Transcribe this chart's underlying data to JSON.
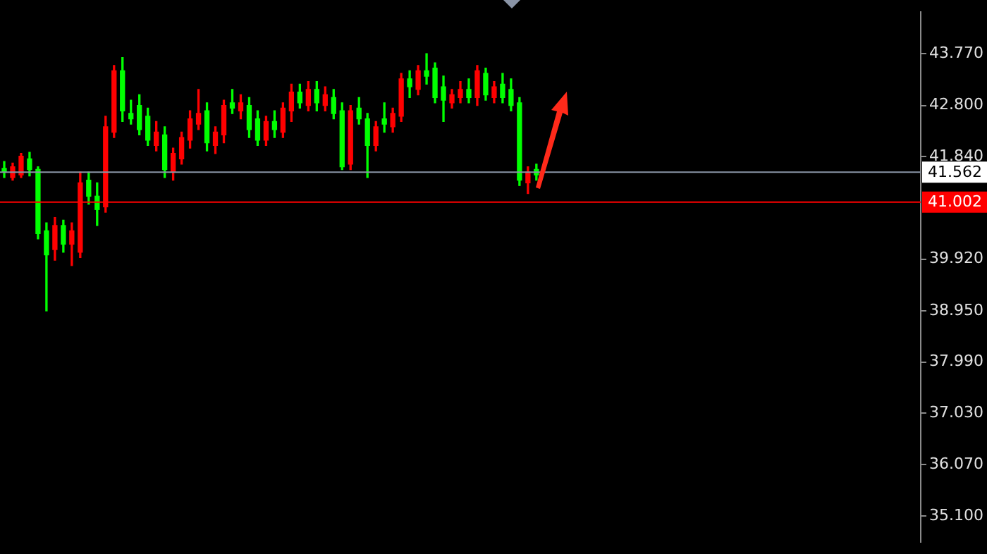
{
  "chart_data": {
    "type": "candlestick",
    "categories": [
      null,
      null,
      null,
      null,
      null,
      null,
      null,
      null,
      null,
      null,
      null,
      null,
      null,
      null,
      null,
      null,
      null,
      null,
      null,
      null,
      null,
      null,
      null,
      null,
      null,
      null,
      null,
      null,
      null,
      null,
      null,
      null,
      null,
      null,
      null,
      null,
      null,
      null,
      null,
      null,
      null,
      null,
      null,
      null,
      null,
      null,
      null,
      null,
      null,
      null,
      null,
      null,
      null,
      null,
      null,
      null,
      null,
      null,
      null,
      null,
      null,
      null,
      null,
      null,
      null,
      null,
      null,
      null,
      null,
      null,
      null,
      null,
      null,
      null,
      null,
      null,
      null,
      null,
      null,
      null,
      null,
      null,
      null,
      null,
      null,
      null,
      null,
      null,
      null,
      null,
      null,
      null,
      null,
      null,
      null,
      null,
      null,
      null,
      null,
      null,
      null,
      null,
      null,
      null,
      null,
      null,
      null,
      null,
      null
    ],
    "ohlc": [
      [
        41.62,
        41.75,
        41.45,
        41.55
      ],
      [
        41.45,
        41.72,
        41.4,
        41.65
      ],
      [
        41.5,
        41.9,
        41.45,
        41.85
      ],
      [
        41.8,
        41.92,
        41.48,
        41.6
      ],
      [
        41.6,
        41.65,
        40.3,
        40.4
      ],
      [
        40.45,
        40.6,
        38.95,
        40.0
      ],
      [
        40.1,
        40.7,
        39.9,
        40.55
      ],
      [
        40.55,
        40.65,
        40.05,
        40.2
      ],
      [
        40.2,
        40.6,
        39.8,
        40.45
      ],
      [
        40.05,
        41.55,
        39.95,
        41.35
      ],
      [
        41.4,
        41.55,
        40.95,
        41.1
      ],
      [
        41.1,
        41.35,
        40.55,
        40.85
      ],
      [
        40.9,
        42.6,
        40.8,
        42.4
      ],
      [
        42.3,
        43.55,
        42.2,
        43.45
      ],
      [
        43.45,
        43.7,
        42.5,
        42.7
      ],
      [
        42.65,
        42.9,
        42.45,
        42.55
      ],
      [
        42.8,
        43.0,
        42.25,
        42.35
      ],
      [
        42.6,
        42.75,
        42.05,
        42.15
      ],
      [
        42.05,
        42.5,
        41.95,
        42.3
      ],
      [
        42.25,
        42.4,
        41.45,
        41.6
      ],
      [
        41.55,
        42.0,
        41.4,
        41.9
      ],
      [
        41.8,
        42.3,
        41.7,
        42.2
      ],
      [
        42.15,
        42.7,
        42.0,
        42.55
      ],
      [
        42.45,
        43.1,
        42.35,
        42.65
      ],
      [
        42.7,
        42.85,
        41.95,
        42.1
      ],
      [
        42.05,
        42.4,
        41.9,
        42.3
      ],
      [
        42.25,
        42.9,
        42.1,
        42.8
      ],
      [
        42.85,
        43.1,
        42.65,
        42.75
      ],
      [
        42.7,
        43.0,
        42.55,
        42.85
      ],
      [
        42.8,
        42.95,
        42.2,
        42.35
      ],
      [
        42.55,
        42.7,
        42.05,
        42.15
      ],
      [
        42.15,
        42.6,
        42.05,
        42.5
      ],
      [
        42.5,
        42.7,
        42.2,
        42.35
      ],
      [
        42.3,
        42.85,
        42.2,
        42.75
      ],
      [
        42.7,
        43.2,
        42.5,
        43.05
      ],
      [
        43.05,
        43.2,
        42.75,
        42.85
      ],
      [
        42.8,
        43.25,
        42.7,
        43.1
      ],
      [
        43.1,
        43.25,
        42.7,
        42.85
      ],
      [
        42.8,
        43.15,
        42.7,
        43.0
      ],
      [
        42.95,
        43.1,
        42.55,
        42.65
      ],
      [
        42.7,
        42.85,
        41.6,
        41.65
      ],
      [
        41.7,
        42.8,
        41.6,
        42.7
      ],
      [
        42.75,
        42.95,
        42.45,
        42.55
      ],
      [
        42.55,
        42.65,
        41.45,
        42.05
      ],
      [
        42.05,
        42.5,
        41.95,
        42.4
      ],
      [
        42.55,
        42.85,
        42.3,
        42.45
      ],
      [
        42.4,
        42.75,
        42.3,
        42.65
      ],
      [
        42.6,
        43.4,
        42.5,
        43.3
      ],
      [
        43.3,
        43.45,
        42.95,
        43.15
      ],
      [
        43.1,
        43.55,
        43.0,
        43.45
      ],
      [
        43.45,
        43.77,
        43.2,
        43.35
      ],
      [
        43.5,
        43.6,
        42.85,
        42.95
      ],
      [
        43.15,
        43.35,
        42.5,
        42.9
      ],
      [
        42.85,
        43.1,
        42.75,
        43.0
      ],
      [
        42.95,
        43.25,
        42.85,
        43.1
      ],
      [
        43.1,
        43.3,
        42.85,
        42.95
      ],
      [
        42.95,
        43.55,
        42.8,
        43.45
      ],
      [
        43.4,
        43.5,
        42.9,
        43.0
      ],
      [
        42.95,
        43.25,
        42.85,
        43.15
      ],
      [
        43.2,
        43.4,
        42.85,
        42.95
      ],
      [
        43.1,
        43.3,
        42.7,
        42.8
      ],
      [
        42.85,
        42.95,
        41.3,
        41.4
      ],
      [
        41.35,
        41.65,
        41.15,
        41.55
      ],
      [
        41.6,
        41.7,
        41.4,
        41.5
      ],
      null,
      null,
      null,
      null,
      null,
      null,
      null,
      null,
      null,
      null,
      null,
      null,
      null,
      null,
      null,
      null,
      null,
      null,
      null,
      null,
      null,
      null,
      null,
      null,
      null,
      null,
      null,
      null,
      null,
      null,
      null,
      null,
      null,
      null,
      null,
      null,
      null,
      null,
      null,
      null,
      null,
      null,
      null,
      null,
      null
    ],
    "colors": [
      "#00ff00",
      "#ff0000",
      "#ff0000",
      "#00ff00",
      "#00ff00",
      "#00ff00",
      "#ff0000",
      "#00ff00",
      "#ff0000",
      "#ff0000",
      "#00ff00",
      "#00ff00",
      "#ff0000",
      "#ff0000",
      "#00ff00",
      "#00ff00",
      "#00ff00",
      "#00ff00",
      "#ff0000",
      "#00ff00",
      "#ff0000",
      "#ff0000",
      "#ff0000",
      "#ff0000",
      "#00ff00",
      "#ff0000",
      "#ff0000",
      "#00ff00",
      "#ff0000",
      "#00ff00",
      "#00ff00",
      "#ff0000",
      "#00ff00",
      "#ff0000",
      "#ff0000",
      "#00ff00",
      "#ff0000",
      "#00ff00",
      "#ff0000",
      "#00ff00",
      "#00ff00",
      "#ff0000",
      "#00ff00",
      "#00ff00",
      "#ff0000",
      "#00ff00",
      "#ff0000",
      "#ff0000",
      "#00ff00",
      "#ff0000",
      "#00ff00",
      "#00ff00",
      "#00ff00",
      "#ff0000",
      "#ff0000",
      "#00ff00",
      "#ff0000",
      "#00ff00",
      "#ff0000",
      "#00ff00",
      "#00ff00",
      "#00ff00",
      "#ff0000",
      "#00ff00",
      null,
      null,
      null,
      null,
      null,
      null,
      null,
      null,
      null,
      null,
      null,
      null,
      null,
      null,
      null,
      null,
      null,
      null,
      null,
      null,
      null,
      null,
      null,
      null,
      null,
      null,
      null,
      null,
      null,
      null,
      null,
      null,
      null,
      null,
      null,
      null,
      null,
      null,
      null,
      null,
      null,
      null,
      null,
      null,
      null
    ],
    "ylim": [
      34.62,
      44.55
    ],
    "yticks": [
      {
        "value": 35.1,
        "label": "35.100"
      },
      {
        "value": 36.07,
        "label": "36.070"
      },
      {
        "value": 37.03,
        "label": "37.030"
      },
      {
        "value": 37.99,
        "label": "37.990"
      },
      {
        "value": 38.95,
        "label": "38.950"
      },
      {
        "value": 39.92,
        "label": "39.920"
      },
      {
        "value": 41.84,
        "label": "41.840"
      },
      {
        "value": 42.8,
        "label": "42.800"
      },
      {
        "value": 43.77,
        "label": "43.770"
      }
    ],
    "tick_labels": "y",
    "ref_lines": [
      {
        "axis": "y",
        "value": 41.562,
        "label": "41.562",
        "color": "#8a94a6"
      },
      {
        "axis": "y",
        "value": 41.002,
        "label": "41.002",
        "color": "#ff0000"
      }
    ]
  }
}
